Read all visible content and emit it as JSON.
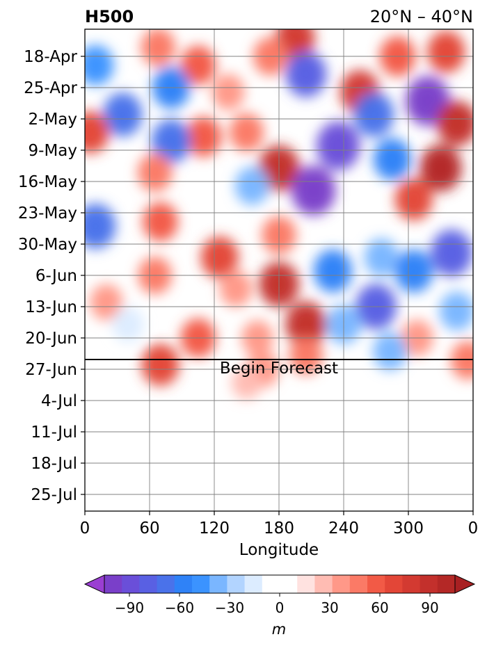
{
  "chart_data": {
    "type": "heatmap",
    "title_left": "H500",
    "title_right": "20°N – 40°N",
    "xlabel": "Longitude",
    "x_ticks": [
      "0",
      "60",
      "120",
      "180",
      "240",
      "300",
      "0"
    ],
    "xlim": [
      0,
      360
    ],
    "y_ticks": [
      "18-Apr",
      "25-Apr",
      "2-May",
      "9-May",
      "16-May",
      "23-May",
      "30-May",
      "6-Jun",
      "13-Jun",
      "20-Jun",
      "27-Jun",
      "4-Jul",
      "11-Jul",
      "18-Jul",
      "25-Jul"
    ],
    "y_axis_inverted": true,
    "grid": true,
    "forecast_annotation": "Begin Forecast",
    "forecast_start": "Between 20-Jun and 27-Jun",
    "colorbar": {
      "label": "m",
      "ticks": [
        "−90",
        "−60",
        "−30",
        "0",
        "30",
        "60",
        "90"
      ],
      "tick_values": [
        -90,
        -60,
        -30,
        0,
        30,
        60,
        90
      ],
      "range": [
        -105,
        105
      ],
      "step": 10,
      "extend": "both",
      "colors": [
        "#7a3fc9",
        "#6a4fd9",
        "#5960e3",
        "#4a72ea",
        "#2f82f7",
        "#3b93ff",
        "#7ab6ff",
        "#b2d4ff",
        "#dcecff",
        "#ffffff",
        "#ffffff",
        "#ffe2e0",
        "#ffbcb3",
        "#ff9888",
        "#fb7a66",
        "#f25a46",
        "#e34637",
        "#d33a31",
        "#c3302c",
        "#b42826"
      ],
      "extend_low_color": "#9a3ed2",
      "extend_high_color": "#a82022"
    },
    "anomaly_features": [
      {
        "lon": 195,
        "date": "14-Apr",
        "value": 70
      },
      {
        "lon": 68,
        "date": "16-Apr",
        "value": 40
      },
      {
        "lon": 10,
        "date": "20-Apr",
        "value": -50
      },
      {
        "lon": 105,
        "date": "20-Apr",
        "value": 45
      },
      {
        "lon": 172,
        "date": "18-Apr",
        "value": 40
      },
      {
        "lon": 290,
        "date": "18-Apr",
        "value": 50
      },
      {
        "lon": 335,
        "date": "17-Apr",
        "value": 60
      },
      {
        "lon": 205,
        "date": "22-Apr",
        "value": -80
      },
      {
        "lon": 80,
        "date": "25-Apr",
        "value": -60
      },
      {
        "lon": 255,
        "date": "26-Apr",
        "value": 70
      },
      {
        "lon": 133,
        "date": "26-Apr",
        "value": 30
      },
      {
        "lon": 35,
        "date": "1-May",
        "value": -70
      },
      {
        "lon": 268,
        "date": "1-May",
        "value": -75
      },
      {
        "lon": 318,
        "date": "28-Apr",
        "value": -100
      },
      {
        "lon": 5,
        "date": "5-May",
        "value": 60
      },
      {
        "lon": 345,
        "date": "3-May",
        "value": 75
      },
      {
        "lon": 110,
        "date": "6-May",
        "value": 50
      },
      {
        "lon": 80,
        "date": "7-May",
        "value": -70
      },
      {
        "lon": 150,
        "date": "5-May",
        "value": 40
      },
      {
        "lon": 235,
        "date": "8-May",
        "value": -95
      },
      {
        "lon": 285,
        "date": "11-May",
        "value": -60
      },
      {
        "lon": 330,
        "date": "13-May",
        "value": 85
      },
      {
        "lon": 180,
        "date": "13-May",
        "value": 80
      },
      {
        "lon": 65,
        "date": "14-May",
        "value": 40
      },
      {
        "lon": 212,
        "date": "18-May",
        "value": -100
      },
      {
        "lon": 155,
        "date": "17-May",
        "value": -40
      },
      {
        "lon": 305,
        "date": "20-May",
        "value": 60
      },
      {
        "lon": 10,
        "date": "26-May",
        "value": -75
      },
      {
        "lon": 70,
        "date": "25-May",
        "value": 45
      },
      {
        "lon": 180,
        "date": "28-May",
        "value": 40
      },
      {
        "lon": 125,
        "date": "2-Jun",
        "value": 60
      },
      {
        "lon": 340,
        "date": "1-Jun",
        "value": -85
      },
      {
        "lon": 230,
        "date": "5-Jun",
        "value": -65
      },
      {
        "lon": 275,
        "date": "2-Jun",
        "value": -40
      },
      {
        "lon": 305,
        "date": "5-Jun",
        "value": -65
      },
      {
        "lon": 65,
        "date": "6-Jun",
        "value": 35
      },
      {
        "lon": 180,
        "date": "8-Jun",
        "value": 75
      },
      {
        "lon": 140,
        "date": "9-Jun",
        "value": 30
      },
      {
        "lon": 270,
        "date": "13-Jun",
        "value": -80
      },
      {
        "lon": 20,
        "date": "12-Jun",
        "value": 30
      },
      {
        "lon": 205,
        "date": "17-Jun",
        "value": 80
      },
      {
        "lon": 240,
        "date": "17-Jun",
        "value": -45
      },
      {
        "lon": 105,
        "date": "20-Jun",
        "value": 45
      },
      {
        "lon": 345,
        "date": "14-Jun",
        "value": -45
      },
      {
        "lon": 308,
        "date": "20-Jun",
        "value": 30
      },
      {
        "lon": 283,
        "date": "23-Jun",
        "value": -40
      },
      {
        "lon": 205,
        "date": "24-Jun",
        "value": 35
      },
      {
        "lon": 40,
        "date": "17-Jun",
        "value": -25
      },
      {
        "lon": 160,
        "date": "20-Jun",
        "value": 25
      },
      {
        "lon": 70,
        "date": "26-Jun",
        "value": 60
      },
      {
        "lon": 165,
        "date": "27-Jun",
        "value": 30
      },
      {
        "lon": 355,
        "date": "25-Jun",
        "value": 40
      },
      {
        "lon": 150,
        "date": "30-Jun",
        "value": 15
      }
    ]
  }
}
